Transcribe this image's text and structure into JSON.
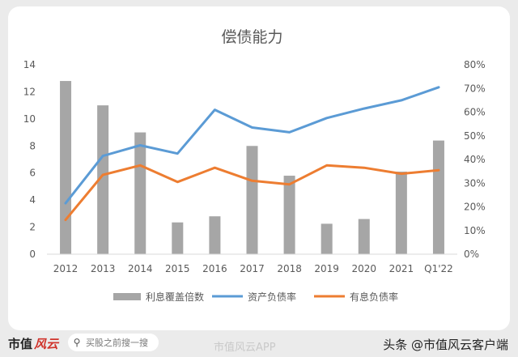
{
  "footer": {
    "brand": "市值",
    "brand_accent": "风云",
    "search_placeholder": "买股之前搜一搜",
    "watermark_center": "市值风云APP",
    "watermark_right": "头条 @市值风云客户端"
  },
  "colors": {
    "bar": "#a6a6a6",
    "line_debt": "#5b9bd5",
    "line_interest": "#ed7d31",
    "axis_text": "#595959",
    "grid": "#d9d9d9"
  },
  "chart_data": {
    "type": "bar+line",
    "title": "偿债能力",
    "categories": [
      "2012",
      "2013",
      "2014",
      "2015",
      "2016",
      "2017",
      "2018",
      "2019",
      "2020",
      "2021",
      "Q1'22"
    ],
    "y_left": {
      "ticks": [
        "0",
        "2",
        "4",
        "6",
        "8",
        "10",
        "12",
        "14"
      ],
      "ylim": [
        0,
        14
      ]
    },
    "y_right": {
      "ticks": [
        "0%",
        "10%",
        "20%",
        "30%",
        "40%",
        "50%",
        "60%",
        "70%",
        "80%"
      ],
      "ylim": [
        0,
        80
      ]
    },
    "bars": {
      "name": "利息覆盖倍数",
      "axis": "left",
      "values": [
        12.8,
        11.0,
        9.0,
        2.35,
        2.8,
        8.0,
        5.8,
        2.25,
        2.6,
        6.1,
        8.4
      ]
    },
    "lines": [
      {
        "name": "资产负债率",
        "axis": "right",
        "color": "#5b9bd5",
        "values": [
          21.5,
          41.5,
          46.0,
          42.5,
          61.0,
          53.5,
          51.5,
          57.5,
          61.5,
          65.0,
          70.5
        ]
      },
      {
        "name": "有息负债率",
        "axis": "right",
        "color": "#ed7d31",
        "values": [
          14.5,
          33.5,
          37.5,
          30.5,
          36.5,
          31.0,
          29.5,
          37.5,
          36.5,
          34.0,
          35.5
        ]
      }
    ],
    "grid": false,
    "legend": "bottom"
  }
}
